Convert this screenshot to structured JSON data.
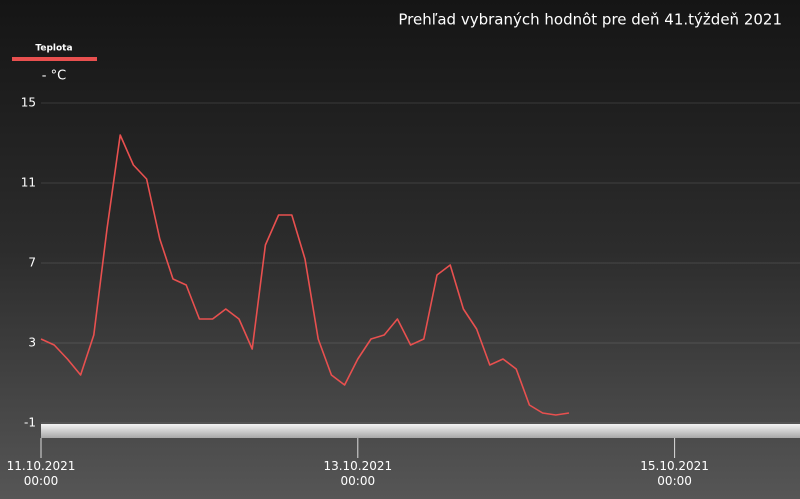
{
  "chart_data": {
    "type": "line",
    "title": "Prehľad vybraných hodnôt pre deň 41.týždeň 2021",
    "y_label": "- °C",
    "x": [
      "2021-10-11T00:00",
      "2021-10-11T02:00",
      "2021-10-11T04:00",
      "2021-10-11T06:00",
      "2021-10-11T08:00",
      "2021-10-11T10:00",
      "2021-10-11T12:00",
      "2021-10-11T14:00",
      "2021-10-11T16:00",
      "2021-10-11T18:00",
      "2021-10-11T20:00",
      "2021-10-11T22:00",
      "2021-10-12T00:00",
      "2021-10-12T02:00",
      "2021-10-12T04:00",
      "2021-10-12T06:00",
      "2021-10-12T08:00",
      "2021-10-12T10:00",
      "2021-10-12T12:00",
      "2021-10-12T14:00",
      "2021-10-12T16:00",
      "2021-10-12T18:00",
      "2021-10-12T20:00",
      "2021-10-12T22:00",
      "2021-10-13T00:00",
      "2021-10-13T02:00",
      "2021-10-13T04:00",
      "2021-10-13T06:00",
      "2021-10-13T08:00",
      "2021-10-13T10:00",
      "2021-10-13T12:00",
      "2021-10-13T14:00",
      "2021-10-13T16:00",
      "2021-10-13T18:00",
      "2021-10-13T20:00",
      "2021-10-13T22:00",
      "2021-10-14T00:00",
      "2021-10-14T02:00",
      "2021-10-14T04:00",
      "2021-10-14T06:00",
      "2021-10-14T08:00"
    ],
    "series": [
      {
        "name": "Teplota",
        "color": "#e8504f",
        "values": [
          3.2,
          2.9,
          2.2,
          1.4,
          3.4,
          8.7,
          13.4,
          11.9,
          11.2,
          8.2,
          6.2,
          5.9,
          4.2,
          4.2,
          4.7,
          4.2,
          2.7,
          7.9,
          9.4,
          9.4,
          7.2,
          3.2,
          1.4,
          0.9,
          2.2,
          3.2,
          3.4,
          4.2,
          2.9,
          3.2,
          6.4,
          6.9,
          4.7,
          3.7,
          1.9,
          2.2,
          1.7,
          -0.1,
          -0.5,
          -0.6,
          -0.5
        ]
      }
    ],
    "xlim": [
      "2021-10-11T00:00",
      "2021-10-15T19:00"
    ],
    "xticks": [
      {
        "value": "2021-10-11T00:00",
        "label": "11.10.2021\n00:00"
      },
      {
        "value": "2021-10-13T00:00",
        "label": "13.10.2021\n00:00"
      },
      {
        "value": "2021-10-15T00:00",
        "label": "15.10.2021\n00:00"
      }
    ],
    "ylim": [
      -1,
      15
    ],
    "yticks": [
      -1,
      3,
      7,
      11,
      15
    ],
    "grid": true
  }
}
